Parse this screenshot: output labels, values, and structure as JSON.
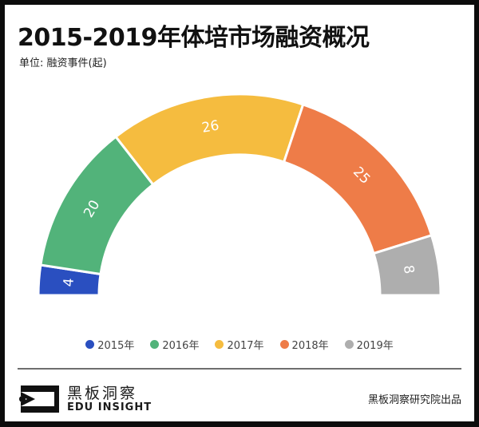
{
  "header": {
    "title": "2015-2019年体培市场融资概况",
    "unit": "单位: 融资事件(起)"
  },
  "chart_data": {
    "type": "pie",
    "variant": "half-donut",
    "title": "2015-2019年体培市场融资概况",
    "unit_label": "单位: 融资事件(起)",
    "categories": [
      "2015年",
      "2016年",
      "2017年",
      "2018年",
      "2019年"
    ],
    "values": [
      4,
      20,
      26,
      25,
      8
    ],
    "data_labels": [
      "4",
      "20",
      "26",
      "25",
      "8"
    ],
    "colors": [
      "#2a4fc0",
      "#52b37a",
      "#f5bc3f",
      "#ee7c48",
      "#aeaeae"
    ],
    "legend_position": "bottom"
  },
  "footer": {
    "logo_cn": "黑板洞察",
    "logo_en": "EDU INSIGHT",
    "credit": "黑板洞察研究院出品"
  }
}
